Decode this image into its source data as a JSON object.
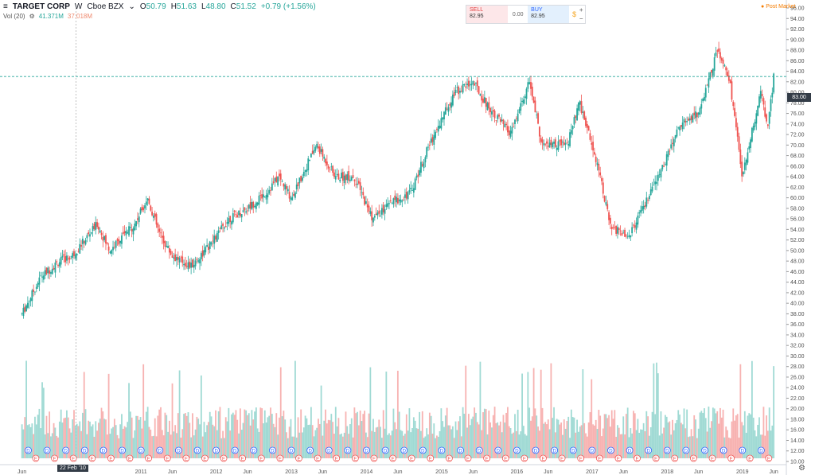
{
  "header": {
    "symbol": "TARGET CORP",
    "interval": "W",
    "exchange": "Cboe BZX",
    "open_label": "O",
    "open": "50.79",
    "high_label": "H",
    "high": "51.63",
    "low_label": "L",
    "low": "48.80",
    "close_label": "C",
    "close": "51.52",
    "change": "+0.79 (+1.56%)"
  },
  "volume": {
    "label": "Vol (20)",
    "value": "41.371M",
    "ma": "37.018M"
  },
  "trade": {
    "sell_label": "SELL",
    "sell": "82.95",
    "spread": "0.00",
    "buy_label": "BUY",
    "buy": "82.95",
    "plus": "+",
    "minus": "−"
  },
  "post_market": "Post Market",
  "current_price": "83.00",
  "cursor_date": "22 Feb '10",
  "colors": {
    "up": "#26a69a",
    "down": "#ef5350",
    "vol_up": "#8fd3cc",
    "vol_down": "#f6a5a3",
    "line": "#26a69a"
  },
  "chart_data": {
    "type": "candlestick",
    "y_axis": {
      "min": 10,
      "max": 96,
      "ticks": [
        10,
        12,
        14,
        16,
        18,
        20,
        22,
        24,
        26,
        28,
        30,
        32,
        34,
        36,
        38,
        40,
        42,
        44,
        46,
        48,
        50,
        52,
        54,
        56,
        58,
        60,
        62,
        64,
        66,
        68,
        70,
        72,
        74,
        76,
        78,
        80,
        82,
        84,
        86,
        88,
        90,
        92,
        94,
        96
      ]
    },
    "x_labels": [
      "Jun",
      "2011",
      "Jun",
      "2012",
      "Jun",
      "2013",
      "Jun",
      "2014",
      "Jun",
      "2015",
      "Jun",
      "2016",
      "Jun",
      "2017",
      "Jun",
      "2018",
      "Jun",
      "2019",
      "Jun"
    ],
    "price_path": [
      [
        "2009-06",
        38
      ],
      [
        "2009-09",
        45
      ],
      [
        "2009-12",
        48
      ],
      [
        "2010-02",
        49
      ],
      [
        "2010-06",
        55
      ],
      [
        "2010-08",
        50
      ],
      [
        "2010-12",
        55
      ],
      [
        "2011-02",
        60
      ],
      [
        "2011-04",
        53
      ],
      [
        "2011-06",
        49
      ],
      [
        "2011-09",
        47
      ],
      [
        "2011-12",
        51
      ],
      [
        "2012-03",
        56
      ],
      [
        "2012-06",
        58
      ],
      [
        "2012-09",
        61
      ],
      [
        "2012-11",
        64
      ],
      [
        "2013-01",
        60
      ],
      [
        "2013-05",
        70
      ],
      [
        "2013-08",
        64
      ],
      [
        "2013-11",
        64
      ],
      [
        "2014-02",
        56
      ],
      [
        "2014-05",
        59
      ],
      [
        "2014-08",
        61
      ],
      [
        "2014-11",
        70
      ],
      [
        "2015-03",
        80
      ],
      [
        "2015-06",
        82
      ],
      [
        "2015-08",
        78
      ],
      [
        "2015-12",
        72
      ],
      [
        "2016-03",
        82
      ],
      [
        "2016-05",
        70
      ],
      [
        "2016-09",
        70
      ],
      [
        "2016-11",
        78
      ],
      [
        "2017-02",
        66
      ],
      [
        "2017-04",
        54
      ],
      [
        "2017-07",
        53
      ],
      [
        "2017-10",
        60
      ],
      [
        "2017-12",
        65
      ],
      [
        "2018-03",
        74
      ],
      [
        "2018-06",
        76
      ],
      [
        "2018-09",
        88
      ],
      [
        "2018-11",
        82
      ],
      [
        "2019-01",
        64
      ],
      [
        "2019-02",
        70
      ],
      [
        "2019-04",
        80
      ],
      [
        "2019-05",
        73
      ],
      [
        "2019-06",
        83
      ]
    ],
    "events": {
      "dividend_label": "D",
      "earnings_label": "E"
    }
  }
}
